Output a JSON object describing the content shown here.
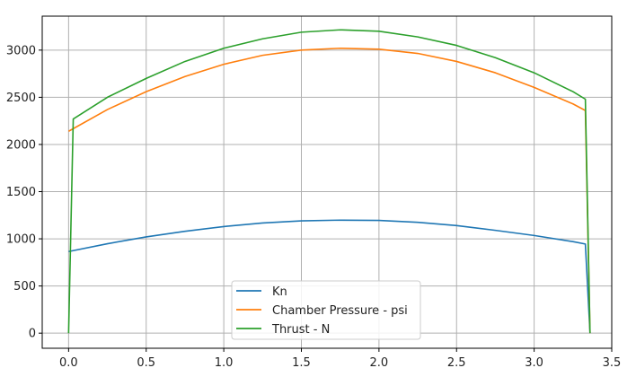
{
  "chart_data": {
    "type": "line",
    "title": "",
    "xlabel": "",
    "ylabel": "",
    "xlim": [
      -0.17,
      3.5
    ],
    "ylim": [
      -160,
      3360
    ],
    "xticks": [
      0.0,
      0.5,
      1.0,
      1.5,
      2.0,
      2.5,
      3.0,
      3.5
    ],
    "xtick_labels": [
      "0.0",
      "0.5",
      "1.0",
      "1.5",
      "2.0",
      "2.5",
      "3.0",
      "3.5"
    ],
    "yticks": [
      0,
      500,
      1000,
      1500,
      2000,
      2500,
      3000
    ],
    "ytick_labels": [
      "0",
      "500",
      "1000",
      "1500",
      "2000",
      "2500",
      "3000"
    ],
    "grid": true,
    "legend_position": "lower-center",
    "series": [
      {
        "name": "Kn",
        "color": "#1f77b4",
        "x": [
          0.0,
          0.25,
          0.5,
          0.75,
          1.0,
          1.25,
          1.5,
          1.75,
          2.0,
          2.25,
          2.5,
          2.75,
          3.0,
          3.25,
          3.33,
          3.36
        ],
        "y": [
          865,
          948,
          1020,
          1080,
          1130,
          1168,
          1190,
          1198,
          1195,
          1175,
          1140,
          1090,
          1035,
          970,
          945,
          0
        ]
      },
      {
        "name": "Chamber Pressure - psi",
        "color": "#ff7f0e",
        "x": [
          0.0,
          0.25,
          0.5,
          0.75,
          1.0,
          1.25,
          1.5,
          1.75,
          2.0,
          2.25,
          2.5,
          2.75,
          3.0,
          3.25,
          3.33,
          3.36
        ],
        "y": [
          2140,
          2370,
          2560,
          2720,
          2850,
          2945,
          3000,
          3020,
          3010,
          2965,
          2880,
          2760,
          2605,
          2430,
          2360,
          0
        ]
      },
      {
        "name": "Thrust - N",
        "color": "#2ca02c",
        "x": [
          0.0,
          0.03,
          0.25,
          0.5,
          0.75,
          1.0,
          1.25,
          1.5,
          1.75,
          2.0,
          2.25,
          2.5,
          2.75,
          3.0,
          3.25,
          3.33,
          3.36
        ],
        "y": [
          0,
          2270,
          2500,
          2700,
          2880,
          3020,
          3120,
          3190,
          3215,
          3200,
          3140,
          3050,
          2920,
          2760,
          2560,
          2480,
          0
        ]
      }
    ]
  }
}
